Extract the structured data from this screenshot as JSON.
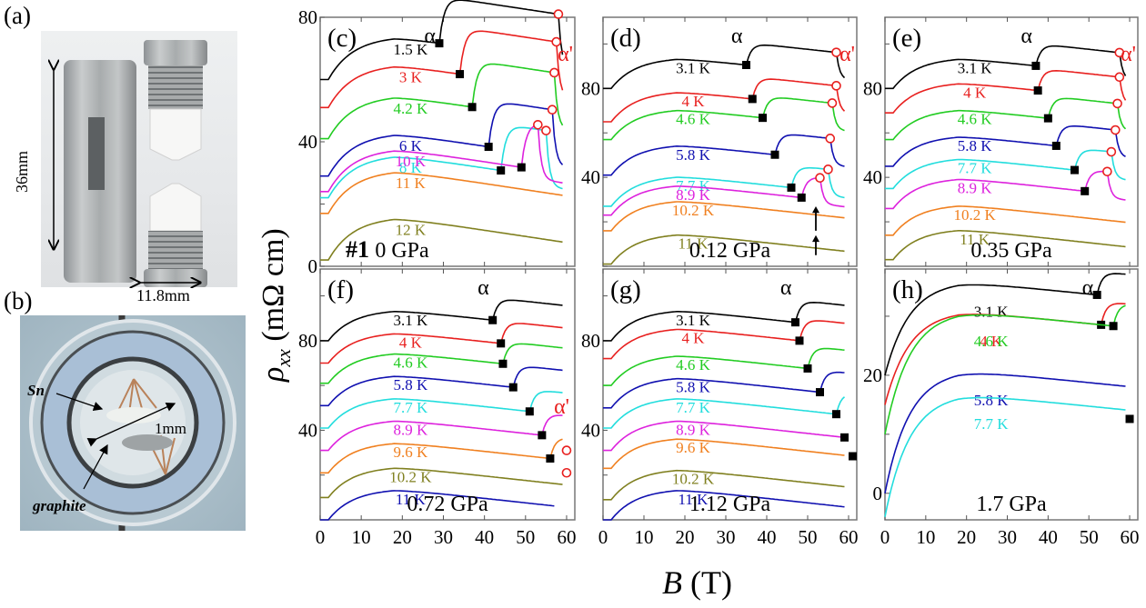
{
  "figure": {
    "panel_a": {
      "label": "(a)",
      "height_dim": "36mm",
      "width_dim": "11.8mm"
    },
    "panel_b": {
      "label": "(b)",
      "sn_label": "Sn",
      "graphite_label": "graphite",
      "scale_label": "1mm"
    },
    "ylabel_main": "ρ",
    "ylabel_sub": "xx",
    "ylabel_unit": " (mΩ cm)",
    "xlabel_main": "B",
    "xlabel_unit": " (T)"
  },
  "chart_data": [
    {
      "type": "line",
      "panel": "(c)",
      "pressure": "0 GPa",
      "sample": "#1",
      "xlim": [
        0,
        62
      ],
      "ylim": [
        0,
        80
      ],
      "yticks": [
        0,
        40,
        80
      ],
      "xticks": [
        0,
        10,
        20,
        30,
        40,
        50,
        60
      ],
      "colors": {
        "1.5 K": "#000000",
        "3 K": "#e8201f",
        "4.2 K": "#22cc22",
        "6 K": "#1010b0",
        "8 K": "#22dddd",
        "10 K": "#dd22dd",
        "11 K": "#f08020",
        "12 K": "#808020"
      },
      "series": [
        {
          "name": "1.5 K",
          "offset": 60,
          "alpha": 29,
          "alpha_prime": 58,
          "bump": [
            78,
            60
          ]
        },
        {
          "name": "3 K",
          "offset": 51,
          "alpha": 34,
          "alpha_prime": 57.5,
          "bump": [
            70,
            57
          ]
        },
        {
          "name": "4.2 K",
          "offset": 41,
          "alpha": 37,
          "alpha_prime": 57,
          "bump": [
            62,
            56
          ]
        },
        {
          "name": "6 K",
          "offset": 29,
          "alpha": 41,
          "alpha_prime": 56.5,
          "bump": [
            55,
            56
          ]
        },
        {
          "name": "8 K",
          "offset": 22,
          "alpha": 44,
          "alpha_prime": 55,
          "bump": [
            47,
            55
          ]
        },
        {
          "name": "10 K",
          "offset": 24,
          "alpha": 49,
          "alpha_prime": 53,
          "bump": [
            27,
            50
          ]
        },
        {
          "name": "11 K",
          "offset": 17,
          "alpha": null,
          "alpha_prime": null,
          "bump": null
        },
        {
          "name": "12 K",
          "offset": 2,
          "alpha": null,
          "alpha_prime": null,
          "bump": null
        }
      ]
    },
    {
      "type": "line",
      "panel": "(d)",
      "pressure": "0.12 GPa",
      "xlim": [
        0,
        62
      ],
      "ylim": [
        0,
        112
      ],
      "yticks": [
        40,
        80
      ],
      "xticks": [
        0,
        10,
        20,
        30,
        40,
        50,
        60
      ],
      "colors": {
        "3.1 K": "#000000",
        "4 K": "#e8201f",
        "4.6 K": "#22cc22",
        "5.8 K": "#1010b0",
        "7.7 K": "#22dddd",
        "8.9 K": "#dd22dd",
        "10.2 K": "#f08020",
        "11 K": "#808020"
      },
      "series": [
        {
          "name": "3.1 K",
          "offset": 80,
          "alpha": 35,
          "alpha_prime": 57
        },
        {
          "name": "4 K",
          "offset": 65,
          "alpha": 36.5,
          "alpha_prime": 57
        },
        {
          "name": "4.6 K",
          "offset": 57,
          "alpha": 39,
          "alpha_prime": 56
        },
        {
          "name": "5.8 K",
          "offset": 41,
          "alpha": 42,
          "alpha_prime": 55.5
        },
        {
          "name": "7.7 K",
          "offset": 27,
          "alpha": 46,
          "alpha_prime": 55
        },
        {
          "name": "8.9 K",
          "offset": 23,
          "alpha": 48.5,
          "alpha_prime": 53
        },
        {
          "name": "10.2 K",
          "offset": 16,
          "alpha": null,
          "alpha_prime": null
        },
        {
          "name": "11 K",
          "offset": 1,
          "alpha": null,
          "alpha_prime": null
        }
      ],
      "annotations": [
        "arrow at ~52 T (10.2 K)",
        "arrow at ~52 T (11 K)"
      ]
    },
    {
      "type": "line",
      "panel": "(e)",
      "pressure": "0.35 GPa",
      "xlim": [
        0,
        62
      ],
      "ylim": [
        0,
        112
      ],
      "yticks": [
        40,
        80
      ],
      "xticks": [
        0,
        10,
        20,
        30,
        40,
        50,
        60
      ],
      "colors": {
        "3.1 K": "#000000",
        "4 K": "#e8201f",
        "4.6 K": "#22cc22",
        "5.8 K": "#1010b0",
        "7.7 K": "#22dddd",
        "8.9 K": "#dd22dd",
        "10.2 K": "#f08020",
        "11 K": "#808020"
      },
      "series": [
        {
          "name": "3.1 K",
          "offset": 80,
          "alpha": 37,
          "alpha_prime": 57.5
        },
        {
          "name": "4 K",
          "offset": 69,
          "alpha": 37.5,
          "alpha_prime": 57.5
        },
        {
          "name": "4.6 K",
          "offset": 57,
          "alpha": 40,
          "alpha_prime": 57
        },
        {
          "name": "5.8 K",
          "offset": 45,
          "alpha": 42,
          "alpha_prime": 56.5
        },
        {
          "name": "7.7 K",
          "offset": 35,
          "alpha": 46.5,
          "alpha_prime": 55.5
        },
        {
          "name": "8.9 K",
          "offset": 26,
          "alpha": 49,
          "alpha_prime": 54.5
        },
        {
          "name": "10.2 K",
          "offset": 14,
          "alpha": null,
          "alpha_prime": null
        },
        {
          "name": "11 K",
          "offset": 3,
          "alpha": null,
          "alpha_prime": null
        }
      ]
    },
    {
      "type": "line",
      "panel": "(f)",
      "pressure": "0.72 GPa",
      "xlim": [
        0,
        62
      ],
      "ylim": [
        0,
        112
      ],
      "yticks": [
        40,
        80
      ],
      "xticks": [
        0,
        10,
        20,
        30,
        40,
        50,
        60
      ],
      "colors": {
        "3.1 K": "#000000",
        "4 K": "#e8201f",
        "4.6 K": "#22cc22",
        "5.8 K": "#1010b0",
        "7.7 K": "#22dddd",
        "8.9 K": "#dd22dd",
        "9.6 K": "#f08020",
        "10.2 K": "#808020",
        "11 K": "#1010b0"
      },
      "series": [
        {
          "name": "3.1 K",
          "offset": 80,
          "alpha": 42,
          "alpha_prime": null
        },
        {
          "name": "4 K",
          "offset": 70,
          "alpha": 44,
          "alpha_prime": null
        },
        {
          "name": "4.6 K",
          "offset": 61,
          "alpha": 44.5,
          "alpha_prime": null
        },
        {
          "name": "5.8 K",
          "offset": 51,
          "alpha": 47,
          "alpha_prime": null
        },
        {
          "name": "7.7 K",
          "offset": 41,
          "alpha": 51,
          "alpha_prime": null
        },
        {
          "name": "8.9 K",
          "offset": 31,
          "alpha": 54,
          "alpha_prime": 60
        },
        {
          "name": "9.6 K",
          "offset": 21,
          "alpha": 56,
          "alpha_prime": 60
        },
        {
          "name": "10.2 K",
          "offset": 10,
          "alpha": null,
          "alpha_prime": null
        },
        {
          "name": "11 K",
          "offset": 0,
          "alpha": null,
          "alpha_prime": null
        }
      ]
    },
    {
      "type": "line",
      "panel": "(g)",
      "pressure": "1.12 GPa",
      "xlim": [
        0,
        62
      ],
      "ylim": [
        0,
        112
      ],
      "yticks": [
        40,
        80
      ],
      "xticks": [
        0,
        10,
        20,
        30,
        40,
        50,
        60
      ],
      "colors": {
        "3.1 K": "#000000",
        "4 K": "#e8201f",
        "4.6 K": "#22cc22",
        "5.8 K": "#1010b0",
        "7.7 K": "#22dddd",
        "8.9 K": "#dd22dd",
        "9.6 K": "#f08020",
        "10.2 K": "#808020",
        "11 K": "#1010b0"
      },
      "series": [
        {
          "name": "3.1 K",
          "offset": 80,
          "alpha": 47,
          "alpha_prime": null
        },
        {
          "name": "4 K",
          "offset": 72,
          "alpha": 48,
          "alpha_prime": null
        },
        {
          "name": "4.6 K",
          "offset": 60,
          "alpha": 50,
          "alpha_prime": null
        },
        {
          "name": "5.8 K",
          "offset": 50,
          "alpha": 53,
          "alpha_prime": null
        },
        {
          "name": "7.7 K",
          "offset": 41,
          "alpha": 57,
          "alpha_prime": null
        },
        {
          "name": "8.9 K",
          "offset": 31,
          "alpha": 59,
          "alpha_prime": null
        },
        {
          "name": "9.6 K",
          "offset": 23,
          "alpha": 61,
          "alpha_prime": null
        },
        {
          "name": "10.2 K",
          "offset": 9,
          "alpha": null,
          "alpha_prime": null
        },
        {
          "name": "11 K",
          "offset": 0,
          "alpha": null,
          "alpha_prime": null
        }
      ]
    },
    {
      "type": "line",
      "panel": "(h)",
      "pressure": "1.7 GPa",
      "xlim": [
        0,
        62
      ],
      "ylim": [
        -4.5,
        38
      ],
      "yticks": [
        0,
        20
      ],
      "xticks": [
        0,
        10,
        20,
        30,
        40,
        50,
        60
      ],
      "colors": {
        "3.1 K": "#000000",
        "4 K": "#e8201f",
        "4.6 K": "#22cc22",
        "5.8 K": "#1010b0",
        "7.7 K": "#22dddd"
      },
      "series": [
        {
          "name": "3.1 K",
          "offset": 20,
          "alpha": 52,
          "alpha_prime": null
        },
        {
          "name": "4 K",
          "offset": 15,
          "alpha": 53,
          "alpha_prime": null
        },
        {
          "name": "4.6 K",
          "offset": 10,
          "alpha": 56,
          "alpha_prime": null
        },
        {
          "name": "5.8 K",
          "offset": 0,
          "alpha": 60,
          "alpha_prime": null
        },
        {
          "name": "7.7 K",
          "offset": -4,
          "alpha": null,
          "alpha_prime": null
        }
      ]
    }
  ],
  "labels": {
    "alpha": "α",
    "alpha_prime": "α'",
    "c": {
      "tag": "(c)",
      "p": "0 GPa",
      "s": "#1",
      "t": [
        "1.5 K",
        "3 K",
        "4.2 K",
        "6 K",
        "8 K",
        "10 K",
        "11 K",
        "12 K"
      ]
    },
    "d": {
      "tag": "(d)",
      "p": "0.12 GPa",
      "t": [
        "3.1 K",
        "4 K",
        "4.6 K",
        "5.8 K",
        "7.7 K",
        "8.9 K",
        "10.2 K",
        "11 K"
      ]
    },
    "e": {
      "tag": "(e)",
      "p": "0.35 GPa",
      "t": [
        "3.1 K",
        "4 K",
        "4.6 K",
        "5.8 K",
        "7.7 K",
        "8.9 K",
        "10.2 K",
        "11 K"
      ]
    },
    "f": {
      "tag": "(f)",
      "p": "0.72 GPa",
      "t": [
        "3.1 K",
        "4 K",
        "4.6 K",
        "5.8 K",
        "7.7 K",
        "8.9 K",
        "9.6 K",
        "10.2 K",
        "11 K"
      ]
    },
    "g": {
      "tag": "(g)",
      "p": "1.12 GPa",
      "t": [
        "3.1 K",
        "4 K",
        "4.6 K",
        "5.8 K",
        "7.7 K",
        "8.9 K",
        "9.6 K",
        "10.2 K",
        "11 K"
      ]
    },
    "h": {
      "tag": "(h)",
      "p": "1.7 GPa",
      "t": [
        "3.1 K",
        "4 K",
        "4.6 K",
        "5.8 K",
        "7.7 K"
      ]
    }
  }
}
